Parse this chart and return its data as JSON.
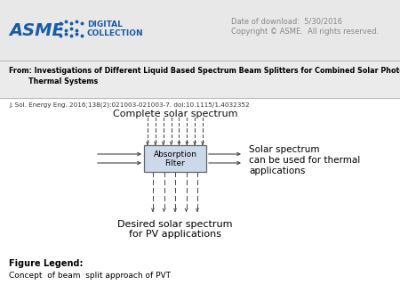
{
  "bg_color": "#ffffff",
  "header_bg": "#e8e8e8",
  "date_text": "Date of download:  5/30/2016",
  "copyright_text": "Copyright © ASME.  All rights reserved.",
  "from_line1": "From: Investigations of Different Liquid Based Spectrum Beam Splitters for Combined Solar Photovoltaic",
  "from_line2": "        Thermal Systems",
  "journal_ref": "J. Sol. Energy Eng. 2016;138(2):021003-021003-7. doi:10.1115/1.4032352",
  "diagram_title": "Complete solar spectrum",
  "box_label_line1": "Absorption",
  "box_label_line2": "Filter",
  "right_label_line1": "Solar spectrum",
  "right_label_line2": "can be used for thermal",
  "right_label_line3": "applications",
  "bottom_label_line1": "Desired solar spectrum",
  "bottom_label_line2": "for PV applications",
  "figure_legend_title": "Figure Legend:",
  "figure_legend_text": "Concept  of beam  split approach of PVT",
  "asme_blue": "#1a5ba6",
  "gray_text": "#888888"
}
